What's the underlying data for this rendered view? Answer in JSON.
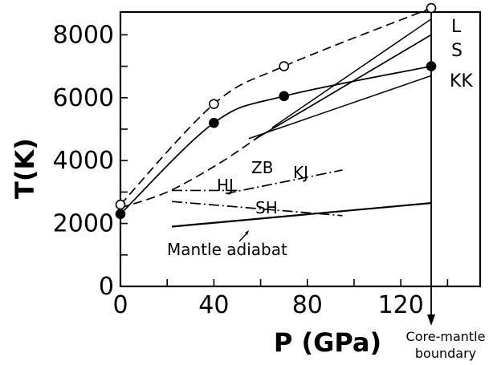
{
  "chart_data": {
    "type": "line",
    "xlabel": "P (GPa)",
    "ylabel": "T(K)",
    "xlim": [
      0,
      140
    ],
    "ylim": [
      0,
      9000
    ],
    "x_ticks": [
      "0",
      "40",
      "80",
      "120"
    ],
    "y_ticks": [
      "0",
      "2000",
      "4000",
      "6000",
      "8000"
    ],
    "series": [
      {
        "name": "L",
        "style": "dashed",
        "marker": "open-circle",
        "x": [
          0,
          40,
          70,
          133
        ],
        "y": [
          2600,
          5800,
          7000,
          8850
        ]
      },
      {
        "name": "KK",
        "style": "solid",
        "marker": "filled-circle",
        "x": [
          0,
          40,
          70,
          133
        ],
        "y": [
          2300,
          5200,
          6050,
          7000
        ]
      },
      {
        "name": "S",
        "style": "solid",
        "x": [
          58,
          133
        ],
        "y": [
          4700,
          8000
        ]
      },
      {
        "name": "ZB",
        "style": "dashed",
        "x": [
          0,
          20,
          42,
          60
        ],
        "y": [
          2500,
          3000,
          3900,
          4800
        ]
      },
      {
        "name": "HJ",
        "style": "dash-dot",
        "x": [
          22,
          50
        ],
        "y": [
          3050,
          3050
        ]
      },
      {
        "name": "KJ",
        "style": "dash-dot",
        "x": [
          45,
          95
        ],
        "y": [
          2950,
          3700
        ]
      },
      {
        "name": "SH",
        "style": "dash-dot",
        "x": [
          22,
          95
        ],
        "y": [
          2700,
          2250
        ]
      },
      {
        "name": "Mantle adiabat",
        "style": "solid",
        "x": [
          22,
          133
        ],
        "y": [
          1900,
          2650
        ]
      }
    ],
    "extra_lines": [
      {
        "style": "solid",
        "x": [
          65,
          133
        ],
        "y": [
          5050,
          8500
        ]
      },
      {
        "style": "solid",
        "x": [
          55,
          133
        ],
        "y": [
          4700,
          6700
        ]
      }
    ],
    "annotations": {
      "core_mantle_line1": "Core-mantle",
      "core_mantle_line2": "boundary",
      "core_mantle_P": 133
    }
  }
}
